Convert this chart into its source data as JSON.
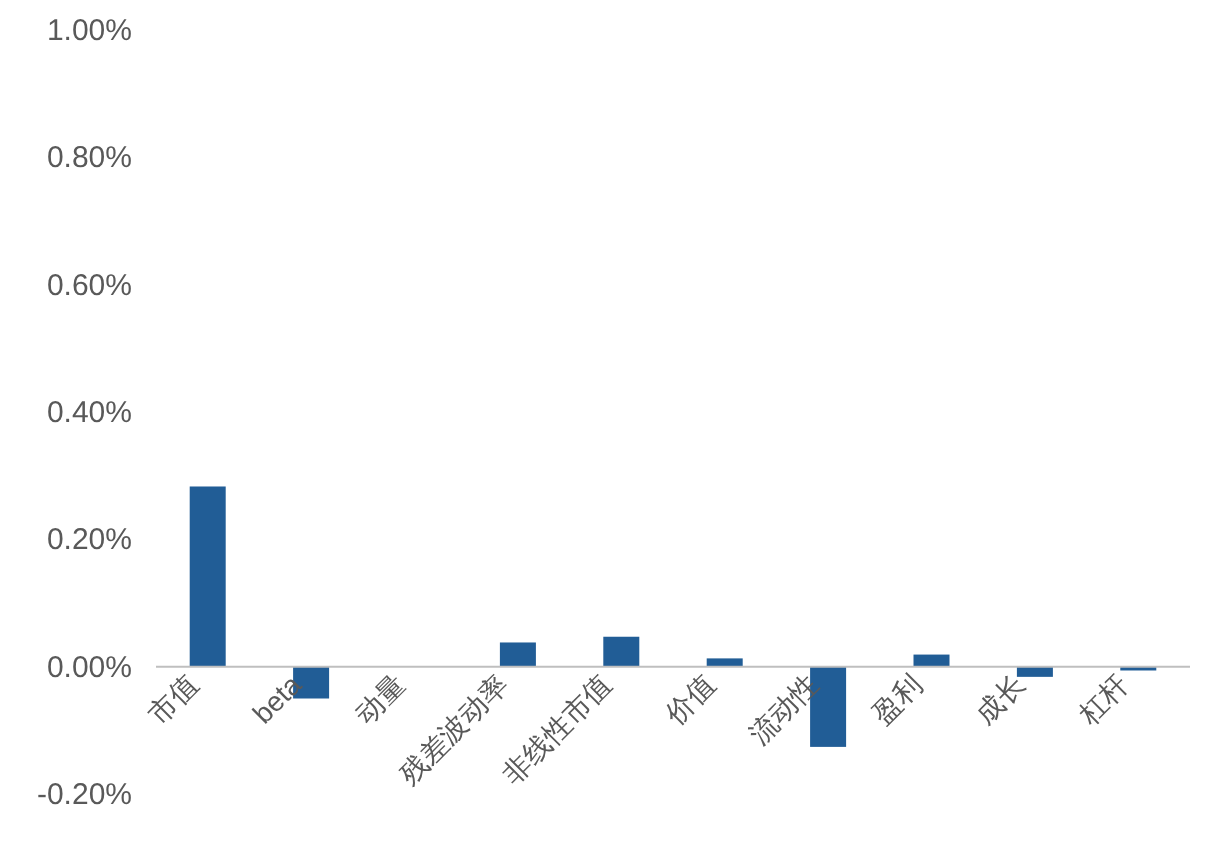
{
  "chart_data": {
    "type": "bar",
    "categories": [
      "市值",
      "beta",
      "动量",
      "残差波动率",
      "非线性市值",
      "价值",
      "流动性",
      "盈利",
      "成长",
      "杠杆"
    ],
    "values": [
      0.283,
      -0.05,
      0,
      0.038,
      0.047,
      0.013,
      -0.126,
      0.019,
      -0.016,
      -0.006
    ],
    "color": "#215d96",
    "ylim": [
      -0.2,
      1.0
    ],
    "yticks": [
      {
        "value": -0.2,
        "label": "-0.20%"
      },
      {
        "value": 0,
        "label": "0.00%"
      },
      {
        "value": 0.2,
        "label": "0.20%"
      },
      {
        "value": 0.4,
        "label": "0.40%"
      },
      {
        "value": 0.6,
        "label": "0.60%"
      },
      {
        "value": 0.8,
        "label": "0.80%"
      },
      {
        "value": 1.0,
        "label": "1.00%"
      }
    ]
  }
}
